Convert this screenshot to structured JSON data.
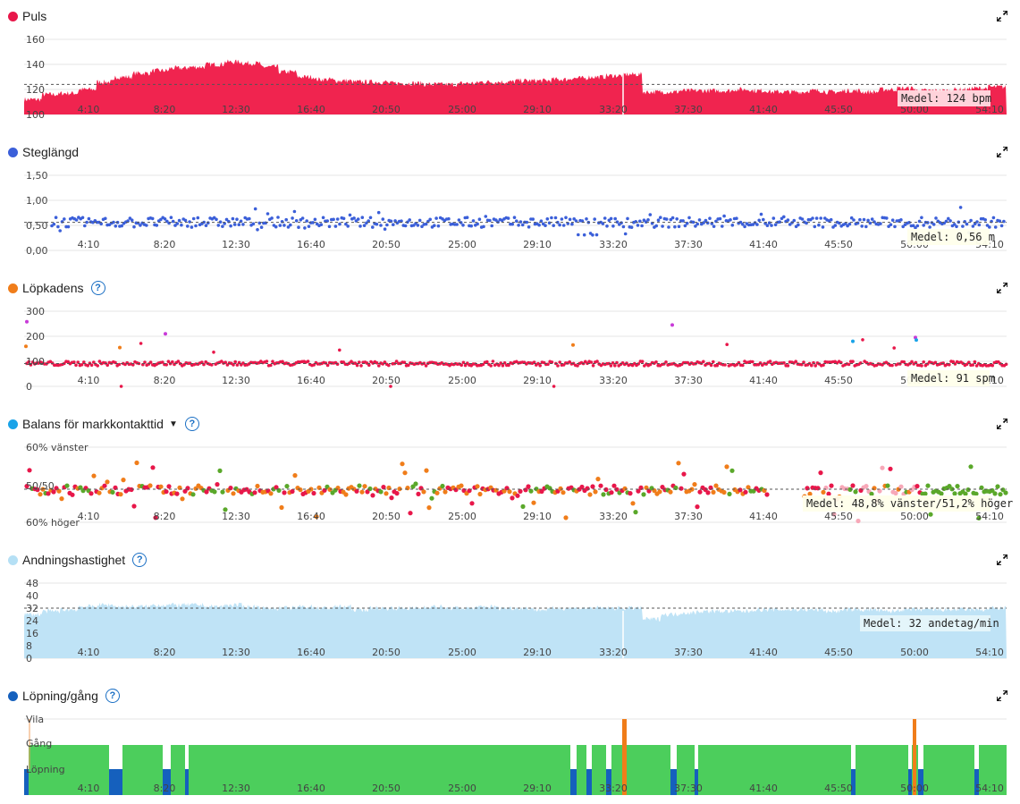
{
  "x_ticks": [
    "4:10",
    "8:20",
    "12:30",
    "16:40",
    "20:50",
    "25:00",
    "29:10",
    "33:20",
    "37:30",
    "41:40",
    "45:50",
    "50:00",
    "54:10"
  ],
  "panels": [
    {
      "id": "puls",
      "title": "Puls",
      "dot_color": "#e8174a",
      "help": false,
      "dropdown": false,
      "y_labels": [
        "160",
        "140",
        "120",
        "100"
      ],
      "avg_label": "Medel: 124 bpm"
    },
    {
      "id": "steglangd",
      "title": "Steglängd",
      "dot_color": "#3b5fd9",
      "help": false,
      "dropdown": false,
      "y_labels": [
        "1,50",
        "1,00",
        "0,50",
        "0,00"
      ],
      "avg_label": "Medel: 0,56 m"
    },
    {
      "id": "lopkadens",
      "title": "Löpkadens",
      "dot_color": "#f07d1a",
      "help": true,
      "dropdown": false,
      "y_labels": [
        "300",
        "200",
        "100",
        "0"
      ],
      "avg_label": "Medel: 91 spm"
    },
    {
      "id": "balans",
      "title": "Balans för markkontakttid",
      "dot_color": "#1aa3e8",
      "help": true,
      "dropdown": true,
      "y_labels": [
        "60% vänster",
        "50/50",
        "60% höger"
      ],
      "avg_label": "Medel: 48,8% vänster/51,2% höger"
    },
    {
      "id": "andning",
      "title": "Andningshastighet",
      "dot_color": "#b5e0f5",
      "help": true,
      "dropdown": false,
      "y_labels": [
        "48",
        "40",
        "32",
        "24",
        "16",
        "8",
        "0"
      ],
      "avg_label": "Medel: 32 andetag/min"
    },
    {
      "id": "lopning",
      "title": "Löpning/gång",
      "dot_color": "#1560bd",
      "help": true,
      "dropdown": false,
      "y_labels": [
        "Vila",
        "Gång",
        "Löpning"
      ],
      "avg_label": ""
    }
  ],
  "chart_data": [
    {
      "type": "area",
      "title": "Puls",
      "unit": "bpm",
      "ylim": [
        100,
        160
      ],
      "mean": 124,
      "x_range": "0:00–55:40",
      "series": [
        {
          "name": "Puls",
          "values": [
            112,
            116,
            117,
            120,
            126,
            130,
            133,
            135,
            137,
            138,
            140,
            142,
            141,
            138,
            134,
            130,
            128,
            127,
            126,
            126,
            125,
            125,
            124,
            124,
            125,
            126,
            126,
            127,
            127,
            128,
            129,
            130,
            131,
            132,
            118,
            118,
            119,
            119,
            119,
            120,
            119,
            118,
            118,
            119,
            118,
            119,
            118,
            120,
            121,
            119,
            119,
            120,
            121,
            122
          ]
        }
      ]
    },
    {
      "type": "scatter",
      "title": "Steglängd",
      "unit": "m",
      "ylim": [
        0,
        1.5
      ],
      "mean": 0.56
    },
    {
      "type": "scatter",
      "title": "Löpkadens",
      "unit": "spm",
      "ylim": [
        0,
        300
      ],
      "mean": 91
    },
    {
      "type": "scatter",
      "title": "Balans för markkontakttid",
      "mean": "48,8% vänster/51,2% höger"
    },
    {
      "type": "area",
      "title": "Andningshastighet",
      "unit": "andetag/min",
      "ylim": [
        0,
        48
      ],
      "mean": 32,
      "series": [
        {
          "name": "Andningshastighet",
          "values": [
            28,
            30,
            31,
            33,
            34,
            33,
            33,
            34,
            34,
            34,
            33,
            34,
            33,
            32,
            32,
            33,
            32,
            33,
            31,
            32,
            32,
            32,
            33,
            32,
            32,
            33,
            32,
            32,
            31,
            32,
            32,
            32,
            32,
            32,
            25,
            28,
            29,
            30,
            30,
            30,
            31,
            31,
            31,
            31,
            30,
            31,
            31,
            30,
            31,
            31,
            31,
            31,
            31,
            32
          ]
        }
      ]
    },
    {
      "type": "bar",
      "title": "Löpning/gång",
      "categories": [
        "Vila",
        "Gång",
        "Löpning"
      ]
    }
  ]
}
